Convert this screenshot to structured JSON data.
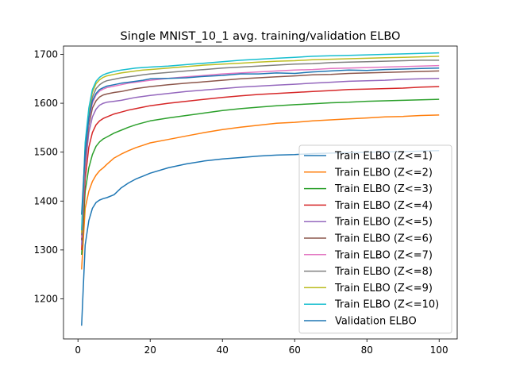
{
  "chart_data": {
    "type": "line",
    "title": "Single MNIST_10_1 avg. training/validation ELBO",
    "xlabel": "",
    "ylabel": "",
    "xlim": [
      -4.0,
      105.0
    ],
    "ylim": [
      1118,
      1717
    ],
    "xticks": [
      0,
      20,
      40,
      60,
      80,
      100
    ],
    "yticks": [
      1200,
      1300,
      1400,
      1500,
      1600,
      1700
    ],
    "grid": false,
    "legend_position": "lower-right",
    "series": [
      {
        "name": "Train ELBO (Z<=1)",
        "color": "#1f77b4",
        "x": [
          1,
          2,
          3,
          4,
          5,
          6,
          7,
          8,
          10,
          12,
          14,
          16,
          18,
          20,
          25,
          30,
          35,
          40,
          45,
          50,
          55,
          60,
          65,
          70,
          75,
          80,
          85,
          90,
          95,
          100
        ],
        "y": [
          1145,
          1310,
          1360,
          1385,
          1397,
          1402,
          1405,
          1407,
          1413,
          1427,
          1437,
          1445,
          1451,
          1457,
          1468,
          1476,
          1482,
          1486,
          1489,
          1492,
          1494,
          1495,
          1497,
          1498,
          1499,
          1500,
          1501,
          1501,
          1502,
          1503
        ]
      },
      {
        "name": "Train ELBO (Z<=2)",
        "color": "#ff7f0e",
        "x": [
          1,
          2,
          3,
          4,
          5,
          6,
          7,
          8,
          10,
          12,
          14,
          16,
          18,
          20,
          25,
          30,
          35,
          40,
          45,
          50,
          55,
          60,
          65,
          70,
          75,
          80,
          85,
          90,
          95,
          100
        ],
        "y": [
          1260,
          1385,
          1420,
          1440,
          1453,
          1462,
          1468,
          1475,
          1488,
          1496,
          1503,
          1509,
          1514,
          1519,
          1526,
          1533,
          1540,
          1546,
          1551,
          1555,
          1559,
          1561,
          1564,
          1566,
          1568,
          1570,
          1572,
          1573,
          1575,
          1576
        ]
      },
      {
        "name": "Train ELBO (Z<=3)",
        "color": "#2ca02c",
        "x": [
          1,
          2,
          3,
          4,
          5,
          6,
          7,
          8,
          10,
          12,
          14,
          16,
          18,
          20,
          25,
          30,
          35,
          40,
          45,
          50,
          55,
          60,
          65,
          70,
          75,
          80,
          85,
          90,
          95,
          100
        ],
        "y": [
          1290,
          1420,
          1468,
          1495,
          1512,
          1521,
          1527,
          1531,
          1539,
          1545,
          1551,
          1556,
          1560,
          1564,
          1570,
          1575,
          1580,
          1585,
          1589,
          1592,
          1595,
          1597,
          1599,
          1601,
          1602,
          1604,
          1605,
          1606,
          1607,
          1608
        ]
      },
      {
        "name": "Train ELBO (Z<=4)",
        "color": "#d62728",
        "x": [
          1,
          2,
          3,
          4,
          5,
          6,
          7,
          8,
          10,
          12,
          14,
          16,
          18,
          20,
          25,
          30,
          35,
          40,
          45,
          50,
          55,
          60,
          65,
          70,
          75,
          80,
          85,
          90,
          95,
          100
        ],
        "y": [
          1300,
          1445,
          1510,
          1540,
          1556,
          1564,
          1569,
          1572,
          1578,
          1582,
          1586,
          1589,
          1592,
          1595,
          1600,
          1604,
          1608,
          1612,
          1615,
          1618,
          1620,
          1622,
          1624,
          1626,
          1628,
          1629,
          1630,
          1631,
          1633,
          1634
        ]
      },
      {
        "name": "Train ELBO (Z<=5)",
        "color": "#9467bd",
        "x": [
          1,
          2,
          3,
          4,
          5,
          6,
          7,
          8,
          10,
          12,
          14,
          16,
          18,
          20,
          25,
          30,
          35,
          40,
          45,
          50,
          55,
          60,
          65,
          70,
          75,
          80,
          85,
          90,
          95,
          100
        ],
        "y": [
          1310,
          1470,
          1540,
          1572,
          1588,
          1596,
          1600,
          1602,
          1604,
          1606,
          1609,
          1612,
          1614,
          1616,
          1620,
          1624,
          1627,
          1630,
          1633,
          1635,
          1637,
          1639,
          1641,
          1643,
          1645,
          1646,
          1647,
          1649,
          1650,
          1651
        ]
      },
      {
        "name": "Train ELBO (Z<=6)",
        "color": "#8c564b",
        "x": [
          1,
          2,
          3,
          4,
          5,
          6,
          7,
          8,
          10,
          12,
          14,
          16,
          18,
          20,
          25,
          30,
          35,
          40,
          45,
          50,
          55,
          60,
          65,
          70,
          75,
          80,
          85,
          90,
          95,
          100
        ],
        "y": [
          1320,
          1485,
          1555,
          1590,
          1605,
          1613,
          1617,
          1619,
          1622,
          1624,
          1627,
          1630,
          1632,
          1634,
          1638,
          1641,
          1644,
          1647,
          1650,
          1652,
          1654,
          1656,
          1658,
          1659,
          1661,
          1662,
          1663,
          1664,
          1665,
          1666
        ]
      },
      {
        "name": "Train ELBO (Z<=7)",
        "color": "#e377c2",
        "x": [
          1,
          2,
          3,
          4,
          5,
          6,
          7,
          8,
          10,
          12,
          14,
          16,
          18,
          20,
          25,
          30,
          35,
          40,
          45,
          50,
          55,
          60,
          65,
          70,
          75,
          80,
          85,
          90,
          95,
          100
        ],
        "y": [
          1325,
          1495,
          1565,
          1600,
          1617,
          1625,
          1629,
          1632,
          1635,
          1638,
          1641,
          1643,
          1645,
          1647,
          1651,
          1654,
          1657,
          1660,
          1662,
          1664,
          1666,
          1668,
          1669,
          1671,
          1672,
          1673,
          1674,
          1675,
          1676,
          1677
        ]
      },
      {
        "name": "Train ELBO (Z<=8)",
        "color": "#7f7f7f",
        "x": [
          1,
          2,
          3,
          4,
          5,
          6,
          7,
          8,
          10,
          12,
          14,
          16,
          18,
          20,
          25,
          30,
          35,
          40,
          45,
          50,
          55,
          60,
          65,
          70,
          75,
          80,
          85,
          90,
          95,
          100
        ],
        "y": [
          1330,
          1505,
          1575,
          1612,
          1630,
          1638,
          1643,
          1646,
          1649,
          1652,
          1654,
          1656,
          1658,
          1660,
          1663,
          1666,
          1669,
          1672,
          1674,
          1676,
          1678,
          1680,
          1681,
          1683,
          1684,
          1685,
          1686,
          1687,
          1688,
          1688
        ]
      },
      {
        "name": "Train ELBO (Z<=9)",
        "color": "#bcbd22",
        "x": [
          1,
          2,
          3,
          4,
          5,
          6,
          7,
          8,
          10,
          12,
          14,
          16,
          18,
          20,
          25,
          30,
          35,
          40,
          45,
          50,
          55,
          60,
          65,
          70,
          75,
          80,
          85,
          90,
          95,
          100
        ],
        "y": [
          1335,
          1515,
          1585,
          1622,
          1640,
          1648,
          1653,
          1656,
          1659,
          1662,
          1664,
          1666,
          1668,
          1669,
          1672,
          1675,
          1678,
          1680,
          1682,
          1684,
          1686,
          1687,
          1689,
          1690,
          1691,
          1692,
          1693,
          1694,
          1695,
          1696
        ]
      },
      {
        "name": "Train ELBO (Z<=10)",
        "color": "#17becf",
        "x": [
          1,
          2,
          3,
          4,
          5,
          6,
          7,
          8,
          10,
          12,
          14,
          16,
          18,
          20,
          25,
          30,
          35,
          40,
          45,
          50,
          55,
          60,
          65,
          70,
          75,
          80,
          85,
          90,
          95,
          100
        ],
        "y": [
          1340,
          1520,
          1590,
          1628,
          1645,
          1653,
          1658,
          1661,
          1665,
          1668,
          1670,
          1672,
          1673,
          1674,
          1676,
          1679,
          1682,
          1685,
          1688,
          1690,
          1692,
          1694,
          1696,
          1697,
          1698,
          1699,
          1700,
          1701,
          1702,
          1703
        ]
      },
      {
        "name": "Validation ELBO",
        "color": "#1f77b4",
        "x": [
          1,
          2,
          3,
          4,
          5,
          6,
          7,
          8,
          10,
          12,
          14,
          16,
          18,
          20,
          25,
          30,
          35,
          40,
          45,
          50,
          55,
          60,
          65,
          70,
          75,
          80,
          85,
          90,
          95,
          100
        ],
        "y": [
          1372,
          1500,
          1570,
          1605,
          1620,
          1628,
          1632,
          1635,
          1638,
          1641,
          1643,
          1645,
          1647,
          1650,
          1651,
          1652,
          1655,
          1657,
          1660,
          1660,
          1662,
          1661,
          1664,
          1666,
          1668,
          1667,
          1669,
          1670,
          1671,
          1672
        ]
      }
    ]
  }
}
